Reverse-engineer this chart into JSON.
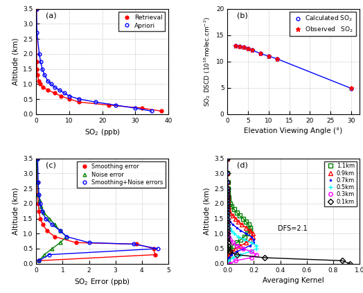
{
  "panel_a": {
    "retrieval_so2": [
      38.0,
      32.0,
      22.0,
      13.0,
      10.0,
      7.5,
      5.5,
      3.5,
      2.0,
      1.2,
      0.7,
      0.4,
      0.2,
      0.1,
      0.05
    ],
    "retrieval_alt": [
      0.1,
      0.2,
      0.3,
      0.4,
      0.5,
      0.6,
      0.7,
      0.8,
      0.9,
      1.0,
      1.1,
      1.3,
      1.5,
      1.75,
      3.5
    ],
    "apriori_so2": [
      35.0,
      30.0,
      24.0,
      18.0,
      13.0,
      10.0,
      8.5,
      7.0,
      5.5,
      4.5,
      3.5,
      2.5,
      1.8,
      1.3,
      0.9,
      0.2,
      0.05
    ],
    "apriori_alt": [
      0.1,
      0.2,
      0.3,
      0.4,
      0.5,
      0.6,
      0.7,
      0.8,
      0.9,
      1.0,
      1.1,
      1.3,
      1.5,
      1.75,
      2.0,
      2.7,
      3.5
    ],
    "xlim": [
      0,
      40
    ],
    "ylim": [
      0,
      3.5
    ],
    "xlabel": "SO$_2$ (ppb)",
    "ylabel": "Altitude (km)",
    "xticks": [
      0,
      10,
      20,
      30,
      40
    ],
    "yticks": [
      0,
      0.5,
      1.0,
      1.5,
      2.0,
      2.5,
      3.0,
      3.5
    ],
    "label": "(a)"
  },
  "panel_b": {
    "elev_angles": [
      2,
      3,
      4,
      5,
      6,
      8,
      10,
      12,
      30
    ],
    "calc_so2": [
      13.0,
      12.85,
      12.75,
      12.4,
      12.15,
      11.5,
      11.0,
      10.5,
      4.9
    ],
    "obs_so2": [
      13.05,
      12.85,
      12.75,
      12.4,
      12.15,
      11.5,
      11.0,
      10.45,
      4.95
    ],
    "xlim": [
      0,
      32
    ],
    "ylim": [
      0,
      20
    ],
    "xlabel": "Elevation Viewing Angle (°)",
    "ylabel": "SO$_2$ DSCD (10$^{16}$molec.cm$^{-2}$)",
    "xticks": [
      0,
      5,
      10,
      15,
      20,
      25,
      30
    ],
    "yticks": [
      0,
      5,
      10,
      15,
      20
    ],
    "label": "(b)"
  },
  "panel_c": {
    "smoothing_alt": [
      3.5,
      2.7,
      2.3,
      2.0,
      1.75,
      1.5,
      1.3,
      1.1,
      0.9,
      0.7,
      0.65,
      0.5,
      0.3,
      0.1
    ],
    "smoothing_err": [
      0.03,
      0.04,
      0.05,
      0.07,
      0.1,
      0.15,
      0.25,
      0.4,
      0.7,
      1.5,
      3.8,
      4.45,
      4.5,
      0.1
    ],
    "noise_alt": [
      3.5,
      2.7,
      2.3,
      2.1,
      1.9,
      1.7,
      1.5,
      1.3,
      1.1,
      0.9,
      0.7,
      0.5,
      0.3,
      0.1
    ],
    "noise_err": [
      0.03,
      0.05,
      0.08,
      0.12,
      0.18,
      0.28,
      0.5,
      0.7,
      0.9,
      1.15,
      0.9,
      0.6,
      0.3,
      0.1
    ],
    "combo_alt": [
      3.5,
      2.7,
      2.3,
      2.0,
      1.75,
      1.5,
      1.3,
      1.1,
      0.9,
      0.7,
      0.65,
      0.5,
      0.3,
      0.1
    ],
    "combo_err": [
      0.05,
      0.07,
      0.1,
      0.15,
      0.22,
      0.35,
      0.6,
      0.9,
      1.15,
      2.0,
      3.7,
      4.6,
      0.48,
      0.1
    ],
    "xlim": [
      0,
      5
    ],
    "ylim": [
      0,
      3.5
    ],
    "xlabel": "SO$_2$ Error (ppb)",
    "ylabel": "Altitude (km)",
    "xticks": [
      0,
      1,
      2,
      3,
      4,
      5
    ],
    "yticks": [
      0,
      0.5,
      1.0,
      1.5,
      2.0,
      2.5,
      3.0,
      3.5
    ],
    "label": "(c)"
  },
  "panel_d": {
    "ak_altitudes": [
      0.0,
      0.1,
      0.2,
      0.3,
      0.4,
      0.5,
      0.6,
      0.7,
      0.8,
      0.9,
      1.0,
      1.1,
      1.2,
      1.3,
      1.4,
      1.5,
      1.6,
      1.7,
      1.8,
      1.9,
      2.0,
      2.1,
      2.2,
      2.3,
      2.4,
      2.5,
      2.7,
      3.0,
      3.5
    ],
    "ak_0p1": [
      0.93,
      0.87,
      0.28,
      0.07,
      0.02,
      0.005,
      0.002,
      0.001,
      0.0,
      0.0,
      0.0,
      0.0,
      0.0,
      0.0,
      0.0,
      0.0,
      0.0,
      0.0,
      0.0,
      0.0,
      0.0,
      0.0,
      0.0,
      0.0,
      0.0,
      0.0,
      0.0,
      0.0,
      0.0
    ],
    "ak_0p3": [
      0.02,
      0.06,
      0.18,
      0.22,
      0.18,
      0.12,
      0.07,
      0.04,
      0.02,
      0.01,
      0.005,
      0.003,
      0.001,
      0.001,
      0.0,
      0.0,
      0.0,
      0.0,
      0.0,
      0.0,
      0.0,
      0.0,
      0.0,
      0.0,
      0.0,
      0.0,
      0.0,
      0.0,
      0.0
    ],
    "ak_0p5": [
      0.005,
      0.01,
      0.04,
      0.1,
      0.17,
      0.22,
      0.22,
      0.18,
      0.13,
      0.08,
      0.05,
      0.03,
      0.02,
      0.01,
      0.005,
      0.003,
      0.001,
      0.001,
      0.0,
      0.0,
      0.0,
      0.0,
      0.0,
      0.0,
      0.0,
      0.0,
      0.0,
      0.0,
      0.0
    ],
    "ak_0p7": [
      0.001,
      0.003,
      0.01,
      0.03,
      0.07,
      0.12,
      0.17,
      0.2,
      0.2,
      0.18,
      0.14,
      0.1,
      0.07,
      0.04,
      0.02,
      0.01,
      0.006,
      0.003,
      0.002,
      0.001,
      0.001,
      0.0,
      0.0,
      0.0,
      0.0,
      0.0,
      0.0,
      0.0,
      0.0
    ],
    "ak_0p9": [
      0.001,
      0.002,
      0.005,
      0.01,
      0.03,
      0.06,
      0.1,
      0.14,
      0.17,
      0.19,
      0.19,
      0.17,
      0.14,
      0.11,
      0.08,
      0.06,
      0.04,
      0.02,
      0.01,
      0.007,
      0.004,
      0.002,
      0.001,
      0.001,
      0.0,
      0.0,
      0.0,
      0.0,
      0.0
    ],
    "ak_1p1": [
      0.0,
      0.001,
      0.002,
      0.005,
      0.01,
      0.02,
      0.04,
      0.07,
      0.1,
      0.13,
      0.15,
      0.17,
      0.17,
      0.16,
      0.14,
      0.12,
      0.09,
      0.07,
      0.05,
      0.03,
      0.02,
      0.01,
      0.007,
      0.004,
      0.002,
      0.001,
      0.001,
      0.0,
      0.0
    ],
    "xlim": [
      0,
      1.0
    ],
    "ylim": [
      0,
      3.5
    ],
    "xlabel": "Averaging Kernel",
    "ylabel": "Altitude (km)",
    "xticks": [
      0,
      0.2,
      0.4,
      0.6,
      0.8,
      1.0
    ],
    "yticks": [
      0,
      0.5,
      1.0,
      1.5,
      2.0,
      2.5,
      3.0,
      3.5
    ],
    "dfs_text": "DFS=2.1",
    "label": "(d)"
  }
}
